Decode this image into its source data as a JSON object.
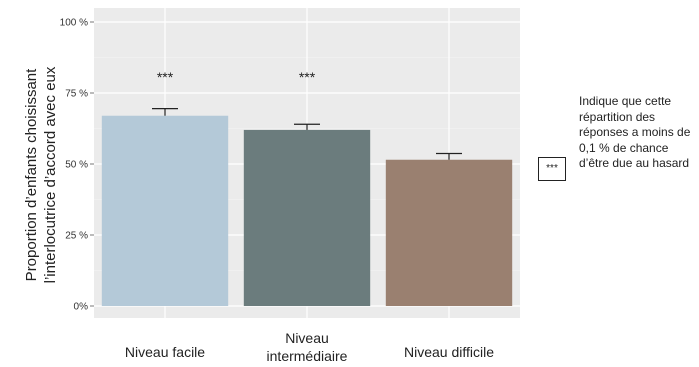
{
  "chart_data": {
    "type": "bar",
    "ylabel_lines": [
      "Proportion d’enfants choisissant",
      "l’interlocutrice d’accord avec eux"
    ],
    "ylim": [
      0,
      100
    ],
    "yticks": [
      0,
      25,
      50,
      75,
      100
    ],
    "ytick_labels": [
      "0%",
      "25 %",
      "50 %",
      "75 %",
      "100 %"
    ],
    "grid": true,
    "categories": [
      {
        "label_lines": [
          "Niveau facile"
        ],
        "value": 67,
        "error": 2.5,
        "significance": "***",
        "color": "#b4c9d8"
      },
      {
        "label_lines": [
          "Niveau",
          "intermédiaire"
        ],
        "value": 62,
        "error": 2,
        "significance": "***",
        "color": "#6b7c7d"
      },
      {
        "label_lines": [
          "Niveau difficile"
        ],
        "value": 51.5,
        "error": 2.2,
        "significance": "",
        "color": "#9a8070"
      }
    ]
  },
  "legend": {
    "symbol": "***",
    "text": "Indique que cette répartition des réponses a moins de 0,1 % de chance d’être due au hasard"
  }
}
